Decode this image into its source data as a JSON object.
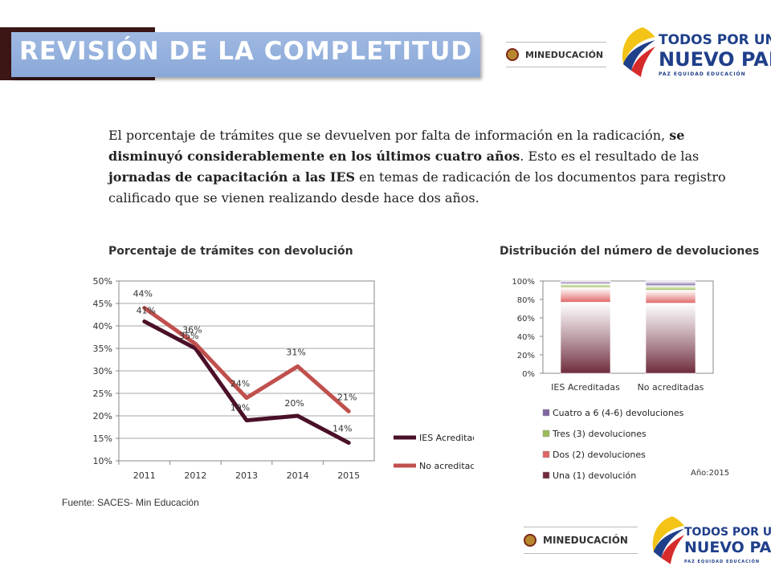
{
  "header": {
    "title": "REVISIÓN DE LA COMPLETITUD",
    "logo_mineducacion": "MINEDUCACIÓN",
    "logo_tpun_line1": "TODOS POR UN",
    "logo_tpun_line2": "NUEVO PAÍS",
    "logo_tpun_line3": "PAZ EQUIDAD EDUCACIÓN"
  },
  "paragraph": {
    "p1": "El porcentaje de trámites que se devuelven por falta de información en la radicación, ",
    "b1": "se disminuyó considerablemente en los últimos cuatro años",
    "p2": ". Esto es el resultado de las ",
    "b2": "jornadas de capacitación a las IES",
    "p3": " en temas de radicación de los documentos para registro calificado  que se vienen realizando desde hace dos años."
  },
  "source": "Fuente: SACES- Min Educación",
  "year_note": "Año:2015",
  "footer": {
    "logo_mineducacion": "MINEDUCACIÓN",
    "logo_tpun_line1": "TODOS POR UN",
    "logo_tpun_line2": "NUEVO PAÍS",
    "logo_tpun_line3": "PAZ EQUIDAD EDUCACIÓN"
  },
  "colors": {
    "ies": "#4a1028",
    "no_acreditadas": "#c0504d",
    "una": "#6e2b3c",
    "dos": "#e06666",
    "tres": "#9bbb59",
    "cuatro": "#8064a2",
    "banner": "#8eaadb"
  },
  "chart_data": [
    {
      "type": "line",
      "title": "Porcentaje de trámites con devolución",
      "categories": [
        "2011",
        "2012",
        "2013",
        "2014",
        "2015"
      ],
      "ylim": [
        10,
        50
      ],
      "yticks": [
        "10%",
        "15%",
        "20%",
        "25%",
        "30%",
        "35%",
        "40%",
        "45%",
        "50%"
      ],
      "grid": true,
      "legend": "right",
      "series": [
        {
          "name": "IES Acreditadas",
          "values": [
            41,
            35,
            19,
            20,
            14
          ],
          "labels": [
            "41%",
            "35%",
            "19%",
            "20%",
            "14%"
          ]
        },
        {
          "name": "No acreditadas",
          "values": [
            44,
            36,
            24,
            31,
            21
          ],
          "labels": [
            "44%",
            "36%",
            "24%",
            "31%",
            "21%"
          ]
        }
      ]
    },
    {
      "type": "bar",
      "stacked": true,
      "title": "Distribución del número de devoluciones",
      "categories": [
        "IES Acreditadas",
        "No acreditadas"
      ],
      "ylim": [
        0,
        100
      ],
      "yticks": [
        "0%",
        "20%",
        "40%",
        "60%",
        "80%",
        "100%"
      ],
      "legend": "bottom",
      "series": [
        {
          "name": "Una (1) devolución",
          "values": [
            77,
            76
          ]
        },
        {
          "name": "Dos (2) devoluciones",
          "values": [
            16,
            14
          ]
        },
        {
          "name": "Tres (3) devoluciones",
          "values": [
            4,
            5
          ]
        },
        {
          "name": "Cuatro a 6 (4-6) devoluciones",
          "values": [
            3,
            5
          ]
        }
      ]
    }
  ]
}
